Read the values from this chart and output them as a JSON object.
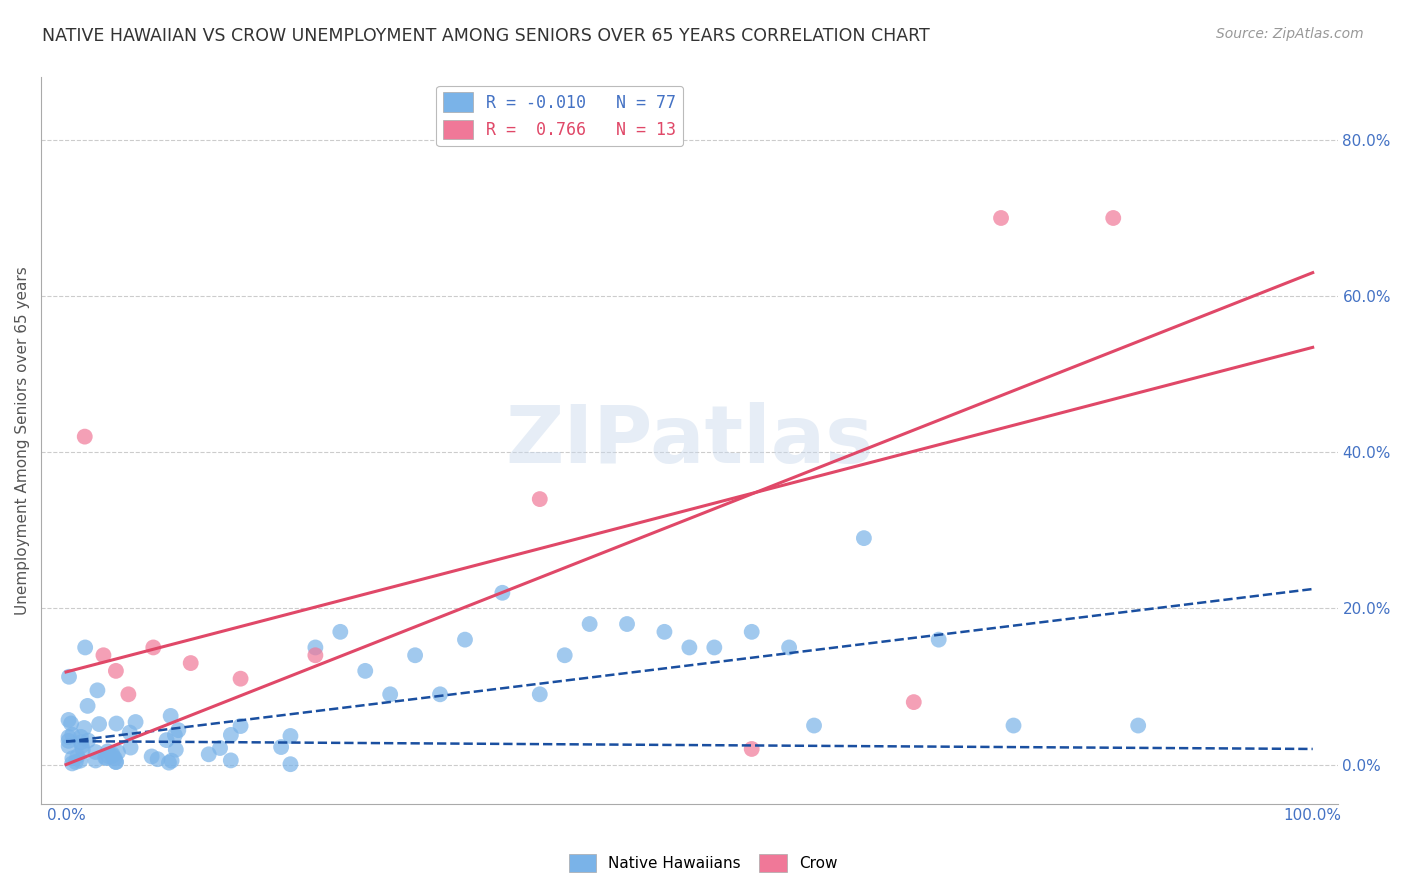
{
  "title": "NATIVE HAWAIIAN VS CROW UNEMPLOYMENT AMONG SENIORS OVER 65 YEARS CORRELATION CHART",
  "source": "Source: ZipAtlas.com",
  "ylabel": "Unemployment Among Seniors over 65 years",
  "ytick_labels": [
    "0.0%",
    "20.0%",
    "40.0%",
    "60.0%",
    "80.0%"
  ],
  "ytick_values": [
    0,
    20,
    40,
    60,
    80
  ],
  "xlim": [
    -2,
    102
  ],
  "ylim": [
    -5,
    88
  ],
  "legend_label_nh": "R = -0.010   N = 77",
  "legend_label_crow": "R =  0.766   N = 13",
  "native_hawaiian_color": "#7ab3e8",
  "crow_color": "#f07898",
  "native_hawaiian_trendline_color": "#1a4fa0",
  "crow_trendline_color": "#e04868",
  "watermark": "ZIPatlas",
  "crow_x": [
    1.5,
    3,
    4,
    5,
    7,
    10,
    14,
    20,
    38,
    55,
    68,
    75,
    84
  ],
  "crow_y": [
    42,
    14,
    12,
    9,
    15,
    13,
    11,
    14,
    34,
    2,
    8,
    70,
    70
  ],
  "nh_seed": 99
}
